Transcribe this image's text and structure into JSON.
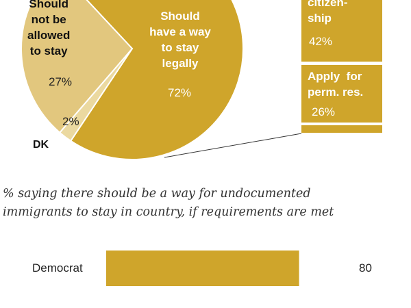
{
  "chart_data": [
    {
      "type": "pie",
      "slices": [
        {
          "label": "Should have a way to stay legally",
          "value": 72,
          "value_label": "72%",
          "color": "#CFA52B"
        },
        {
          "label": "DK",
          "value": 2,
          "value_label": "2%",
          "color": "#EBD9A0"
        },
        {
          "label": "Should not be allowed to stay",
          "value": 27,
          "value_label": "27%",
          "color": "#E2C77E"
        }
      ]
    },
    {
      "type": "bar",
      "orientation": "stacked-vertical",
      "segments": [
        {
          "label": "citizen-ship",
          "value": 42,
          "value_label": "42%"
        },
        {
          "label": "Apply for perm. res.",
          "value": 26,
          "value_label": "26%"
        }
      ],
      "color": "#CFA52B"
    },
    {
      "type": "bar",
      "title": "% saying there should be a way for undocumented immigrants to stay in country, if requirements are met",
      "categories": [
        "Democrat"
      ],
      "values": [
        80
      ],
      "value_labels": [
        "80"
      ],
      "color": "#CFA52B"
    }
  ],
  "text": {
    "pie_main_label": "Should have a way to stay legally",
    "pie_main_l1": "Should",
    "pie_main_l2": "have a way",
    "pie_main_l3": "to stay",
    "pie_main_l4": "legally",
    "pie_no_l1": "Should",
    "pie_no_l2": "not be",
    "pie_no_l3": "allowed",
    "pie_no_l4": "to stay",
    "dk": "DK",
    "seg1_l1": "citizen-",
    "seg1_l2": "ship",
    "seg2_l1": "Apply  for",
    "seg2_l2": "perm. res.",
    "sub_l1": "% saying there should be a way for undocumented",
    "sub_l2": "immigrants to stay in country, if requirements are met"
  }
}
